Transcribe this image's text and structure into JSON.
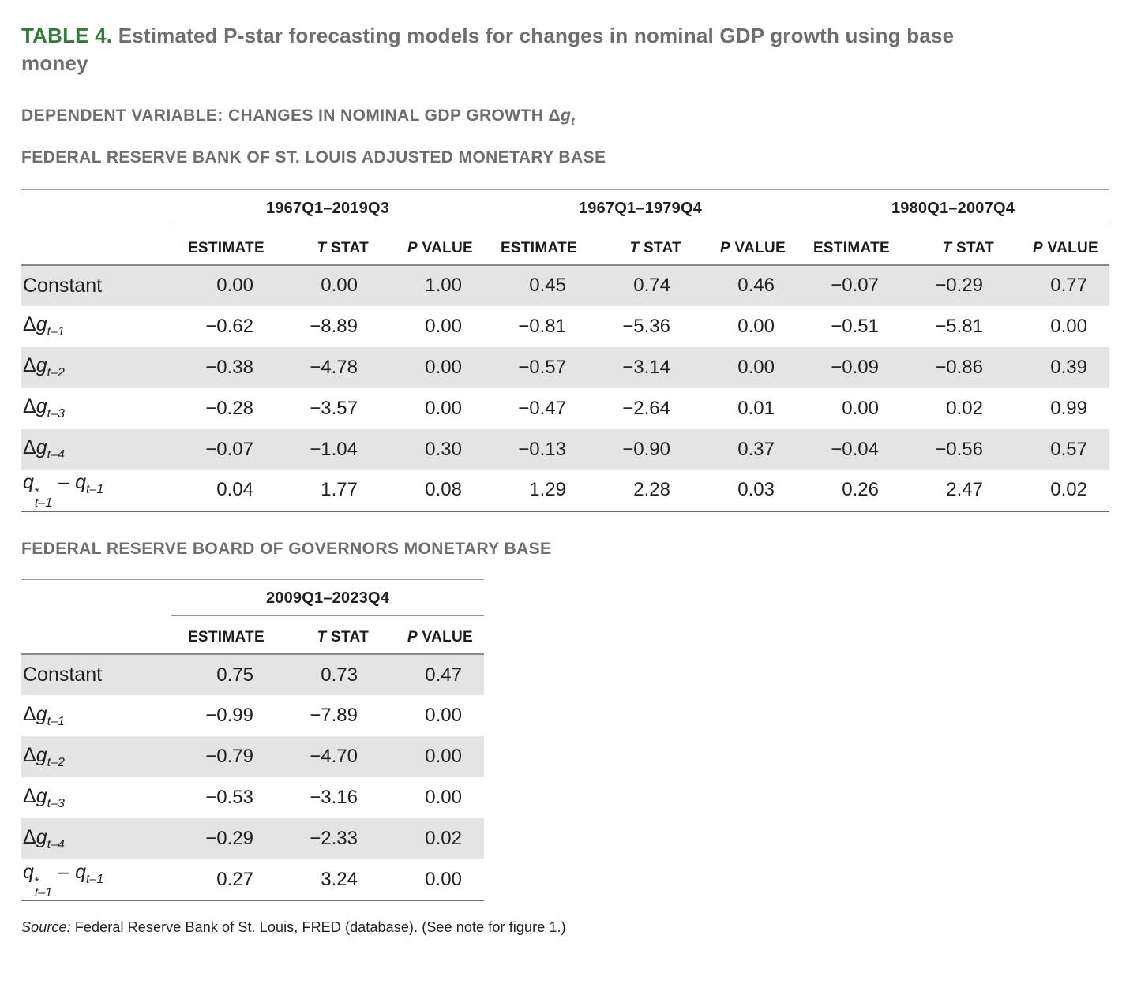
{
  "title": {
    "tag": "TABLE 4.",
    "line1": "Estimated P-star forecasting models for changes in nominal GDP growth using base",
    "line2": "money"
  },
  "dependent_variable": {
    "text": "DEPENDENT VARIABLE: CHANGES IN NOMINAL GDP GROWTH ",
    "symbol": {
      "delta": "Δ",
      "var": "g",
      "sub": "t"
    }
  },
  "section1": {
    "heading": "FEDERAL RESERVE BANK OF ST. LOUIS ADJUSTED MONETARY BASE"
  },
  "section2": {
    "heading": "FEDERAL RESERVE BOARD OF GOVERNORS MONETARY BASE"
  },
  "col_headers": {
    "estimate": "ESTIMATE",
    "t_it": "T",
    "t_rest": " STAT",
    "p_it": "P",
    "p_rest": " VALUE"
  },
  "t1": {
    "groups": [
      "1967Q1–2019Q3",
      "1967Q1–1979Q4",
      "1980Q1–2007Q4"
    ],
    "rows": [
      {
        "label": {
          "text": "Constant"
        },
        "cells": [
          "0.00",
          "0.00",
          "1.00",
          "0.45",
          "0.74",
          "0.46",
          "−0.07",
          "−0.29",
          "0.77"
        ]
      },
      {
        "label": {
          "delta": "Δ",
          "var": "g",
          "sub": "t–1"
        },
        "cells": [
          "−0.62",
          "−8.89",
          "0.00",
          "−0.81",
          "−5.36",
          "0.00",
          "−0.51",
          "−5.81",
          "0.00"
        ]
      },
      {
        "label": {
          "delta": "Δ",
          "var": "g",
          "sub": "t–2"
        },
        "cells": [
          "−0.38",
          "−4.78",
          "0.00",
          "−0.57",
          "−3.14",
          "0.00",
          "−0.09",
          "−0.86",
          "0.39"
        ]
      },
      {
        "label": {
          "delta": "Δ",
          "var": "g",
          "sub": "t–3"
        },
        "cells": [
          "−0.28",
          "−3.57",
          "0.00",
          "−0.47",
          "−2.64",
          "0.01",
          "0.00",
          "0.02",
          "0.99"
        ]
      },
      {
        "label": {
          "delta": "Δ",
          "var": "g",
          "sub": "t–4"
        },
        "cells": [
          "−0.07",
          "−1.04",
          "0.30",
          "−0.13",
          "−0.90",
          "0.37",
          "−0.04",
          "−0.56",
          "0.57"
        ]
      },
      {
        "label": {
          "var": "q",
          "sup": "*",
          "sub": "t–1",
          "op": "–",
          "var2": "q",
          "sub2": "t–1"
        },
        "cells": [
          "0.04",
          "1.77",
          "0.08",
          "1.29",
          "2.28",
          "0.03",
          "0.26",
          "2.47",
          "0.02"
        ]
      }
    ]
  },
  "t2": {
    "group": "2009Q1–2023Q4",
    "rows": [
      {
        "label": {
          "text": "Constant"
        },
        "cells": [
          "0.75",
          "0.73",
          "0.47"
        ]
      },
      {
        "label": {
          "delta": "Δ",
          "var": "g",
          "sub": "t–1"
        },
        "cells": [
          "−0.99",
          "−7.89",
          "0.00"
        ]
      },
      {
        "label": {
          "delta": "Δ",
          "var": "g",
          "sub": "t–2"
        },
        "cells": [
          "−0.79",
          "−4.70",
          "0.00"
        ]
      },
      {
        "label": {
          "delta": "Δ",
          "var": "g",
          "sub": "t–3"
        },
        "cells": [
          "−0.53",
          "−3.16",
          "0.00"
        ]
      },
      {
        "label": {
          "delta": "Δ",
          "var": "g",
          "sub": "t–4"
        },
        "cells": [
          "−0.29",
          "−2.33",
          "0.02"
        ]
      },
      {
        "label": {
          "var": "q",
          "sup": "*",
          "sub": "t–1",
          "op": "–",
          "var2": "q",
          "sub2": "t–1"
        },
        "cells": [
          "0.27",
          "3.24",
          "0.00"
        ]
      }
    ]
  },
  "source": {
    "label": "Source:",
    "text": " Federal Reserve Bank of St. Louis, FRED (database). (See note for figure 1.)"
  },
  "colors": {
    "accent_green": "#37783C",
    "heading_gray": "#6D6E71",
    "row_shade": "#E4E4E4"
  }
}
